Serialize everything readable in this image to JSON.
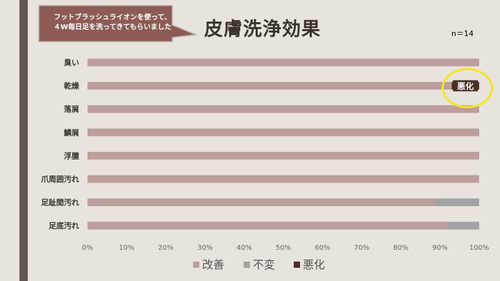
{
  "callout": {
    "lines": [
      "フットブラッシュライオンを使って、",
      "４W毎日足を洗ってきてもらいました"
    ]
  },
  "title": "皮膚洗浄効果",
  "n_label": "n＝14",
  "colors": {
    "improve": "#bc9e9c",
    "nochange": "#a3a3a3",
    "worse": "#4a2f25",
    "track": "#bc9e9c"
  },
  "chart_data": {
    "type": "bar",
    "orientation": "horizontal",
    "stacked": true,
    "categories": [
      "臭い",
      "乾燥",
      "落屑",
      "鱗屑",
      "浮腫",
      "爪周囲汚れ",
      "足趾間汚れ",
      "足底汚れ"
    ],
    "series": [
      {
        "name": "改善",
        "values": [
          100,
          93,
          100,
          100,
          100,
          100,
          89,
          92
        ]
      },
      {
        "name": "不変",
        "values": [
          0,
          0,
          0,
          0,
          0,
          0,
          11,
          8
        ]
      },
      {
        "name": "悪化",
        "values": [
          0,
          7,
          0,
          0,
          0,
          0,
          0,
          0
        ]
      }
    ],
    "data_labels": [
      {
        "category": "乾燥",
        "series": "悪化",
        "text": "悪化"
      }
    ],
    "xlim": [
      0,
      100
    ],
    "xticks": [
      "0%",
      "10%",
      "20%",
      "30%",
      "40%",
      "50%",
      "60%",
      "70%",
      "80%",
      "90%",
      "100%"
    ],
    "legend_position": "bottom"
  }
}
